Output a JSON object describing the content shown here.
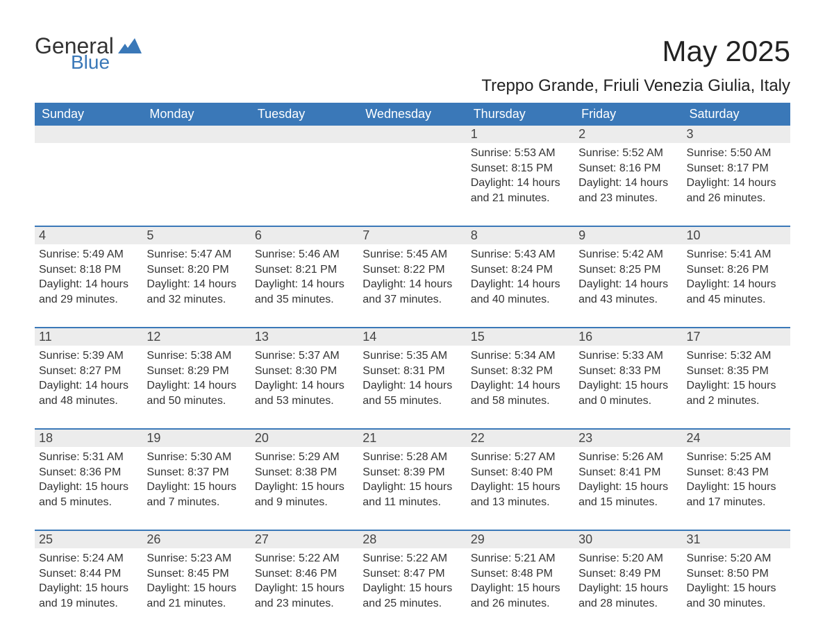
{
  "brand": {
    "word1": "General",
    "word2": "Blue"
  },
  "title": "May 2025",
  "location": "Treppo Grande, Friuli Venezia Giulia, Italy",
  "colors": {
    "header_bg": "#3a78b8",
    "header_text": "#ffffff",
    "daynum_bg": "#ececec",
    "text": "#333333",
    "logo_gray": "#333333",
    "logo_blue": "#3a78b8",
    "background": "#ffffff"
  },
  "typography": {
    "title_fontsize": 42,
    "location_fontsize": 24,
    "dow_fontsize": 18,
    "daynum_fontsize": 18,
    "body_fontsize": 16,
    "logo1_fontsize": 32,
    "logo2_fontsize": 28
  },
  "days_of_week": [
    "Sunday",
    "Monday",
    "Tuesday",
    "Wednesday",
    "Thursday",
    "Friday",
    "Saturday"
  ],
  "labels": {
    "sunrise": "Sunrise:",
    "sunset": "Sunset:",
    "daylight": "Daylight:"
  },
  "weeks": [
    [
      null,
      null,
      null,
      null,
      {
        "n": "1",
        "sr": "5:53 AM",
        "ss": "8:15 PM",
        "dl": "14 hours and 21 minutes."
      },
      {
        "n": "2",
        "sr": "5:52 AM",
        "ss": "8:16 PM",
        "dl": "14 hours and 23 minutes."
      },
      {
        "n": "3",
        "sr": "5:50 AM",
        "ss": "8:17 PM",
        "dl": "14 hours and 26 minutes."
      }
    ],
    [
      {
        "n": "4",
        "sr": "5:49 AM",
        "ss": "8:18 PM",
        "dl": "14 hours and 29 minutes."
      },
      {
        "n": "5",
        "sr": "5:47 AM",
        "ss": "8:20 PM",
        "dl": "14 hours and 32 minutes."
      },
      {
        "n": "6",
        "sr": "5:46 AM",
        "ss": "8:21 PM",
        "dl": "14 hours and 35 minutes."
      },
      {
        "n": "7",
        "sr": "5:45 AM",
        "ss": "8:22 PM",
        "dl": "14 hours and 37 minutes."
      },
      {
        "n": "8",
        "sr": "5:43 AM",
        "ss": "8:24 PM",
        "dl": "14 hours and 40 minutes."
      },
      {
        "n": "9",
        "sr": "5:42 AM",
        "ss": "8:25 PM",
        "dl": "14 hours and 43 minutes."
      },
      {
        "n": "10",
        "sr": "5:41 AM",
        "ss": "8:26 PM",
        "dl": "14 hours and 45 minutes."
      }
    ],
    [
      {
        "n": "11",
        "sr": "5:39 AM",
        "ss": "8:27 PM",
        "dl": "14 hours and 48 minutes."
      },
      {
        "n": "12",
        "sr": "5:38 AM",
        "ss": "8:29 PM",
        "dl": "14 hours and 50 minutes."
      },
      {
        "n": "13",
        "sr": "5:37 AM",
        "ss": "8:30 PM",
        "dl": "14 hours and 53 minutes."
      },
      {
        "n": "14",
        "sr": "5:35 AM",
        "ss": "8:31 PM",
        "dl": "14 hours and 55 minutes."
      },
      {
        "n": "15",
        "sr": "5:34 AM",
        "ss": "8:32 PM",
        "dl": "14 hours and 58 minutes."
      },
      {
        "n": "16",
        "sr": "5:33 AM",
        "ss": "8:33 PM",
        "dl": "15 hours and 0 minutes."
      },
      {
        "n": "17",
        "sr": "5:32 AM",
        "ss": "8:35 PM",
        "dl": "15 hours and 2 minutes."
      }
    ],
    [
      {
        "n": "18",
        "sr": "5:31 AM",
        "ss": "8:36 PM",
        "dl": "15 hours and 5 minutes."
      },
      {
        "n": "19",
        "sr": "5:30 AM",
        "ss": "8:37 PM",
        "dl": "15 hours and 7 minutes."
      },
      {
        "n": "20",
        "sr": "5:29 AM",
        "ss": "8:38 PM",
        "dl": "15 hours and 9 minutes."
      },
      {
        "n": "21",
        "sr": "5:28 AM",
        "ss": "8:39 PM",
        "dl": "15 hours and 11 minutes."
      },
      {
        "n": "22",
        "sr": "5:27 AM",
        "ss": "8:40 PM",
        "dl": "15 hours and 13 minutes."
      },
      {
        "n": "23",
        "sr": "5:26 AM",
        "ss": "8:41 PM",
        "dl": "15 hours and 15 minutes."
      },
      {
        "n": "24",
        "sr": "5:25 AM",
        "ss": "8:43 PM",
        "dl": "15 hours and 17 minutes."
      }
    ],
    [
      {
        "n": "25",
        "sr": "5:24 AM",
        "ss": "8:44 PM",
        "dl": "15 hours and 19 minutes."
      },
      {
        "n": "26",
        "sr": "5:23 AM",
        "ss": "8:45 PM",
        "dl": "15 hours and 21 minutes."
      },
      {
        "n": "27",
        "sr": "5:22 AM",
        "ss": "8:46 PM",
        "dl": "15 hours and 23 minutes."
      },
      {
        "n": "28",
        "sr": "5:22 AM",
        "ss": "8:47 PM",
        "dl": "15 hours and 25 minutes."
      },
      {
        "n": "29",
        "sr": "5:21 AM",
        "ss": "8:48 PM",
        "dl": "15 hours and 26 minutes."
      },
      {
        "n": "30",
        "sr": "5:20 AM",
        "ss": "8:49 PM",
        "dl": "15 hours and 28 minutes."
      },
      {
        "n": "31",
        "sr": "5:20 AM",
        "ss": "8:50 PM",
        "dl": "15 hours and 30 minutes."
      }
    ]
  ]
}
